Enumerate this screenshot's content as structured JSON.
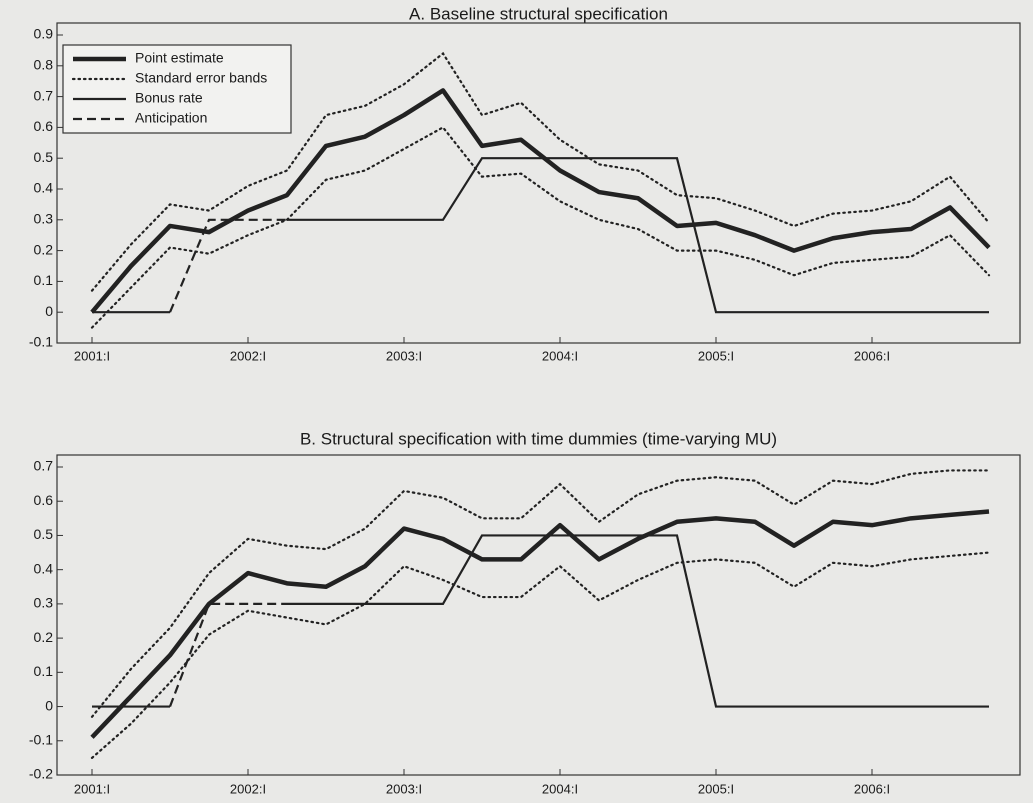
{
  "chart_data": [
    {
      "type": "line",
      "title": "A. Baseline structural specification",
      "categories": [
        "2001:I",
        null,
        null,
        null,
        "2002:I",
        null,
        null,
        null,
        "2003:I",
        null,
        null,
        null,
        "2004:I",
        null,
        null,
        null,
        "2005:I",
        null,
        null,
        null,
        "2006:I",
        null,
        null,
        null
      ],
      "ylim": [
        -0.1,
        0.9
      ],
      "yticks": [
        -0.1,
        0,
        0.1,
        0.2,
        0.3,
        0.4,
        0.5,
        0.6,
        0.7,
        0.8,
        0.9
      ],
      "legend": "upper left",
      "series": [
        {
          "name": "Point estimate",
          "color": "#222222",
          "style": "thick",
          "values": [
            0,
            0.15,
            0.28,
            0.26,
            0.33,
            0.38,
            0.54,
            0.57,
            0.64,
            0.72,
            0.54,
            0.56,
            0.46,
            0.39,
            0.37,
            0.28,
            0.29,
            0.25,
            0.2,
            0.24,
            0.26,
            0.27,
            0.34,
            0.21
          ]
        },
        {
          "name": "Standard error bands",
          "color": "#222222",
          "style": "dotted",
          "upper": [
            0.07,
            0.22,
            0.35,
            0.33,
            0.41,
            0.46,
            0.64,
            0.67,
            0.74,
            0.84,
            0.64,
            0.68,
            0.56,
            0.48,
            0.46,
            0.38,
            0.37,
            0.33,
            0.28,
            0.32,
            0.33,
            0.36,
            0.44,
            0.29
          ],
          "lower": [
            -0.05,
            0.08,
            0.21,
            0.19,
            0.25,
            0.3,
            0.43,
            0.46,
            0.53,
            0.6,
            0.44,
            0.45,
            0.36,
            0.3,
            0.27,
            0.2,
            0.2,
            0.17,
            0.12,
            0.16,
            0.17,
            0.18,
            0.25,
            0.12
          ]
        },
        {
          "name": "Bonus rate",
          "color": "#222222",
          "style": "solid",
          "values": [
            0,
            0,
            0,
            null,
            null,
            0.3,
            0.3,
            0.3,
            0.3,
            0.3,
            0.5,
            0.5,
            0.5,
            0.5,
            0.5,
            0.5,
            0,
            0,
            0,
            0,
            0,
            0,
            0,
            0
          ]
        },
        {
          "name": "Anticipation",
          "color": "#222222",
          "style": "dashed",
          "values": [
            null,
            null,
            0,
            0.3,
            0.3,
            0.3,
            null,
            null,
            null,
            null,
            null,
            null,
            null,
            null,
            null,
            null,
            null,
            null,
            null,
            null,
            null,
            null,
            null,
            null
          ]
        }
      ]
    },
    {
      "type": "line",
      "title": "B. Structural specification with time dummies (time-varying MU)",
      "categories": [
        "2001:I",
        null,
        null,
        null,
        "2002:I",
        null,
        null,
        null,
        "2003:I",
        null,
        null,
        null,
        "2004:I",
        null,
        null,
        null,
        "2005:I",
        null,
        null,
        null,
        "2006:I",
        null,
        null,
        null
      ],
      "ylim": [
        -0.2,
        0.7
      ],
      "yticks": [
        -0.2,
        -0.1,
        0,
        0.1,
        0.2,
        0.3,
        0.4,
        0.5,
        0.6,
        0.7
      ],
      "series": [
        {
          "color": "#222222",
          "style": "thick",
          "values": [
            -0.09,
            0.03,
            0.15,
            0.3,
            0.39,
            0.36,
            0.35,
            0.41,
            0.52,
            0.49,
            0.43,
            0.43,
            0.53,
            0.43,
            0.49,
            0.54,
            0.55,
            0.54,
            0.47,
            0.54,
            0.53,
            0.55,
            0.56,
            0.57
          ]
        },
        {
          "color": "#222222",
          "style": "dotted",
          "upper": [
            -0.03,
            0.11,
            0.23,
            0.39,
            0.49,
            0.47,
            0.46,
            0.52,
            0.63,
            0.61,
            0.55,
            0.55,
            0.65,
            0.54,
            0.62,
            0.66,
            0.67,
            0.66,
            0.59,
            0.66,
            0.65,
            0.68,
            0.69,
            0.69
          ],
          "lower": [
            -0.15,
            -0.05,
            0.07,
            0.21,
            0.28,
            0.26,
            0.24,
            0.3,
            0.41,
            0.37,
            0.32,
            0.32,
            0.41,
            0.31,
            0.37,
            0.42,
            0.43,
            0.42,
            0.35,
            0.42,
            0.41,
            0.43,
            0.44,
            0.45
          ]
        },
        {
          "color": "#222222",
          "style": "solid",
          "values": [
            0,
            0,
            0,
            null,
            null,
            0.3,
            0.3,
            0.3,
            0.3,
            0.3,
            0.5,
            0.5,
            0.5,
            0.5,
            0.5,
            0.5,
            0,
            0,
            0,
            0,
            0,
            0,
            0,
            0
          ]
        },
        {
          "color": "#222222",
          "style": "dashed",
          "values": [
            null,
            null,
            0,
            0.3,
            0.3,
            0.3,
            null,
            null,
            null,
            null,
            null,
            null,
            null,
            null,
            null,
            null,
            null,
            null,
            null,
            null,
            null,
            null,
            null,
            null
          ]
        }
      ]
    }
  ]
}
